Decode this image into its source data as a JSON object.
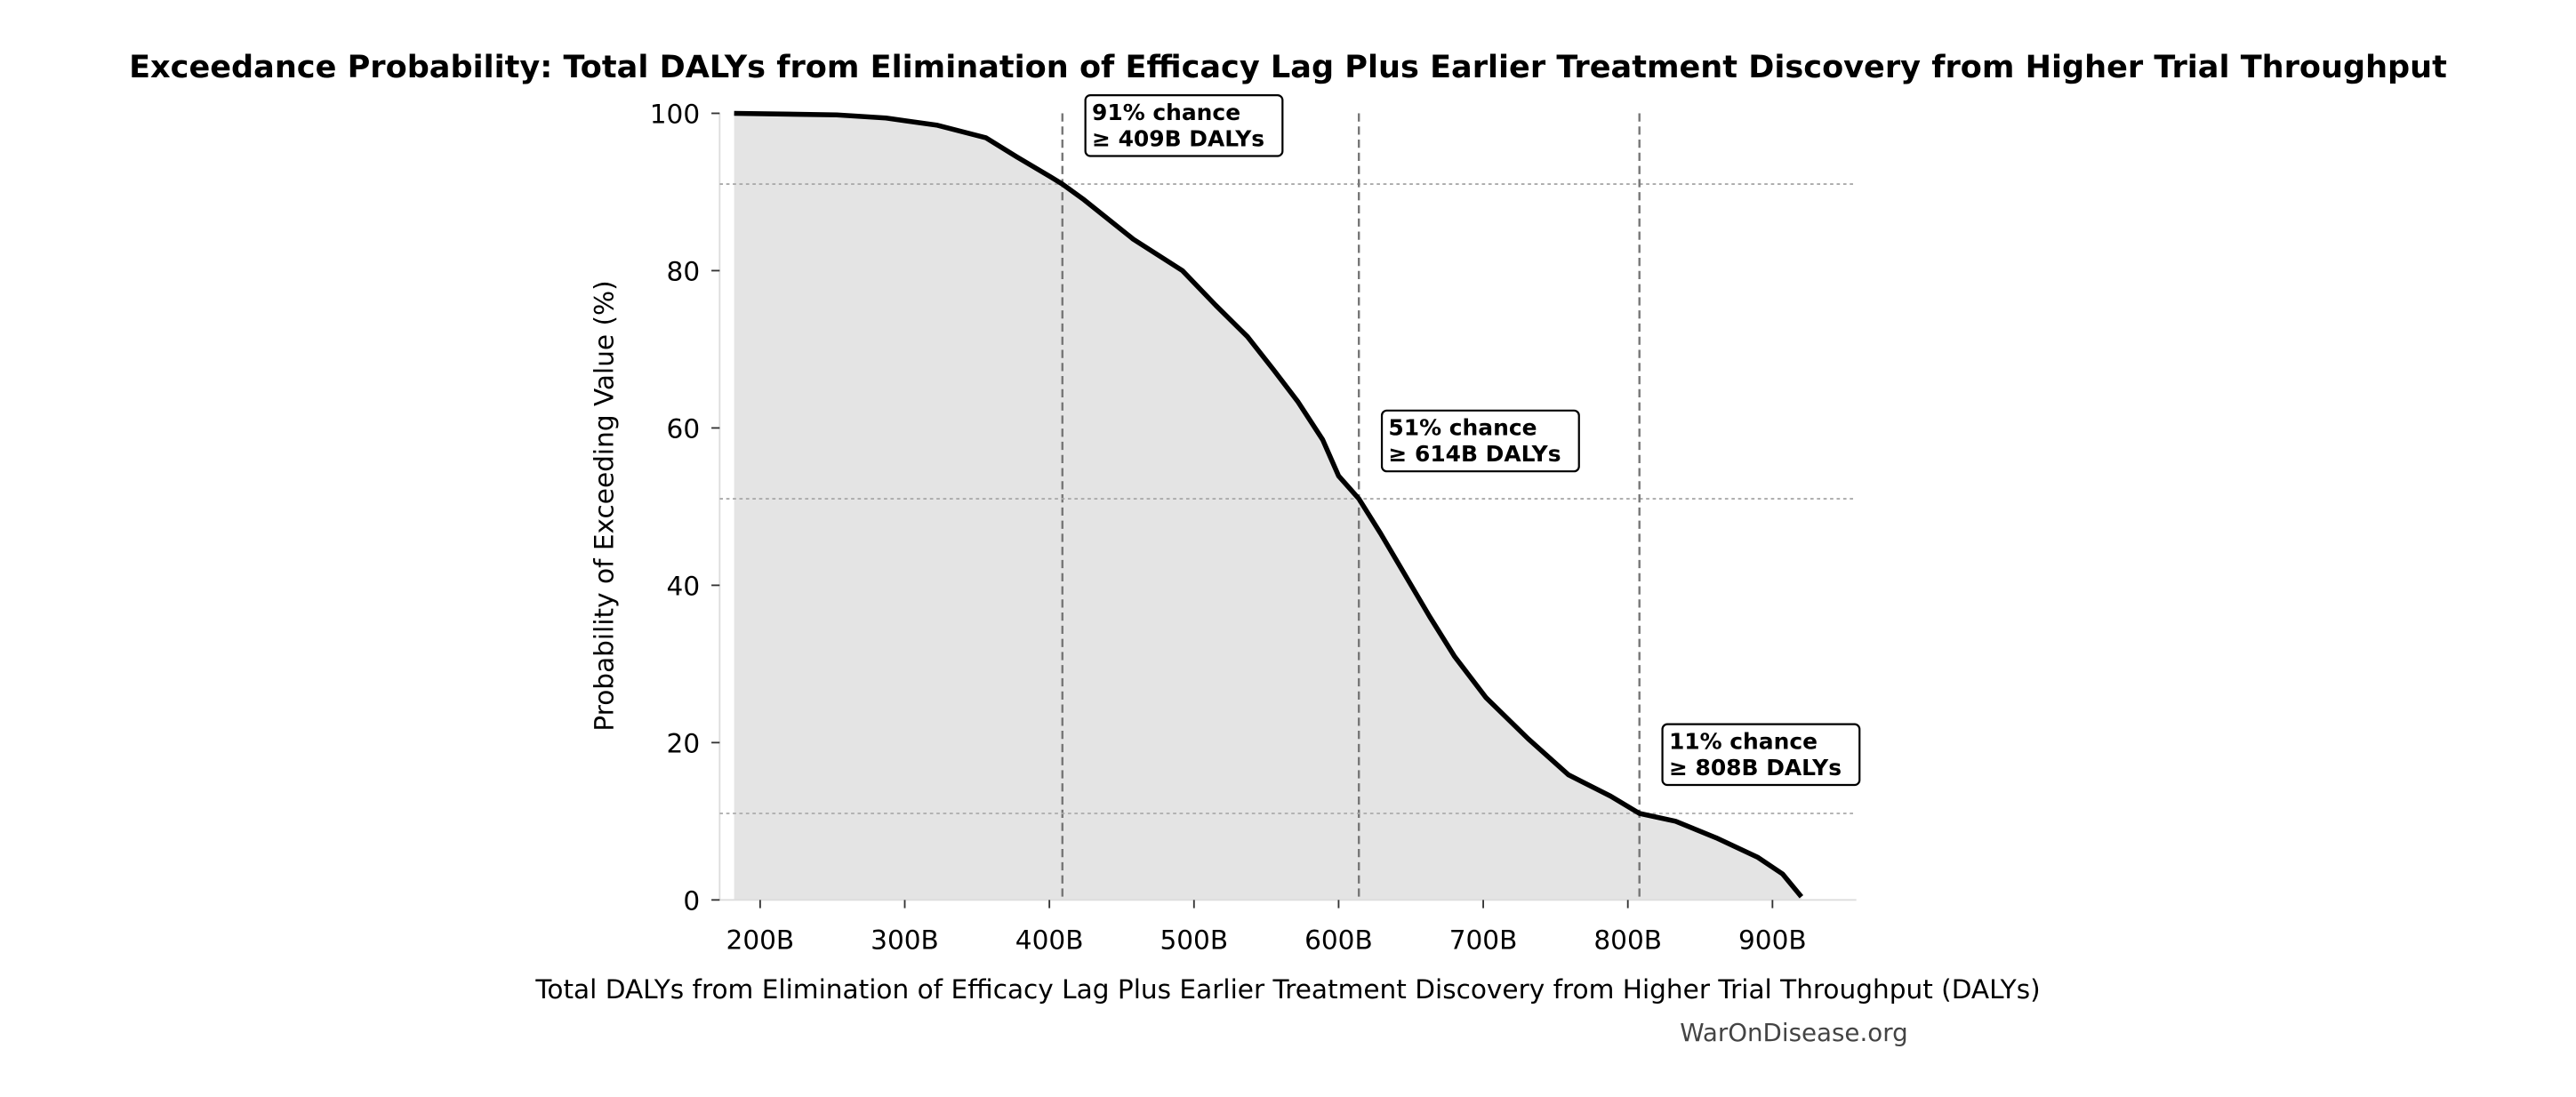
{
  "chart_data": {
    "type": "area",
    "title": "Exceedance Probability: Total DALYs from Elimination of Efficacy Lag Plus Earlier Treatment Discovery from Higher Trial Throughput",
    "xlabel": "Total DALYs from Elimination of Efficacy Lag Plus Earlier Treatment Discovery from Higher Trial Throughput (DALYs)",
    "ylabel": "Probability of Exceeding Value (%)",
    "xlim": [
      172,
      958
    ],
    "ylim": [
      0,
      100
    ],
    "x_unit": "billion DALYs",
    "xticks": [
      200,
      300,
      400,
      500,
      600,
      700,
      800,
      900
    ],
    "xtick_labels": [
      "200B",
      "300B",
      "400B",
      "500B",
      "600B",
      "700B",
      "800B",
      "900B"
    ],
    "yticks": [
      0,
      20,
      40,
      60,
      80,
      100
    ],
    "ytick_labels": [
      "0",
      "20",
      "40",
      "60",
      "80",
      "100"
    ],
    "grid": false,
    "x": [
      182,
      253,
      287,
      322,
      356,
      378,
      401,
      409,
      424,
      458,
      492,
      515,
      537,
      555,
      572,
      589,
      600,
      614,
      629,
      646,
      663,
      680,
      702,
      731,
      759,
      788,
      808,
      833,
      861,
      890,
      907,
      920
    ],
    "y": [
      100,
      99.8,
      99.4,
      98.5,
      96.9,
      94.4,
      91.9,
      91,
      89,
      84,
      80,
      75.6,
      71.6,
      67.4,
      63.3,
      58.5,
      53.9,
      51,
      46.6,
      41.3,
      36,
      31,
      25.7,
      20.5,
      15.9,
      13.2,
      11,
      10,
      7.9,
      5.4,
      3.3,
      0.4
    ],
    "line_color": "#000000",
    "fill_color": "#e4e4e4",
    "annotations": [
      {
        "probability": 91,
        "value": 409,
        "line1": "91% chance",
        "line2": "≥ 409B DALYs"
      },
      {
        "probability": 51,
        "value": 614,
        "line1": "51% chance",
        "line2": "≥ 614B DALYs"
      },
      {
        "probability": 11,
        "value": 808,
        "line1": "11% chance",
        "line2": "≥ 808B DALYs"
      }
    ]
  },
  "watermark": "WarOnDisease.org"
}
